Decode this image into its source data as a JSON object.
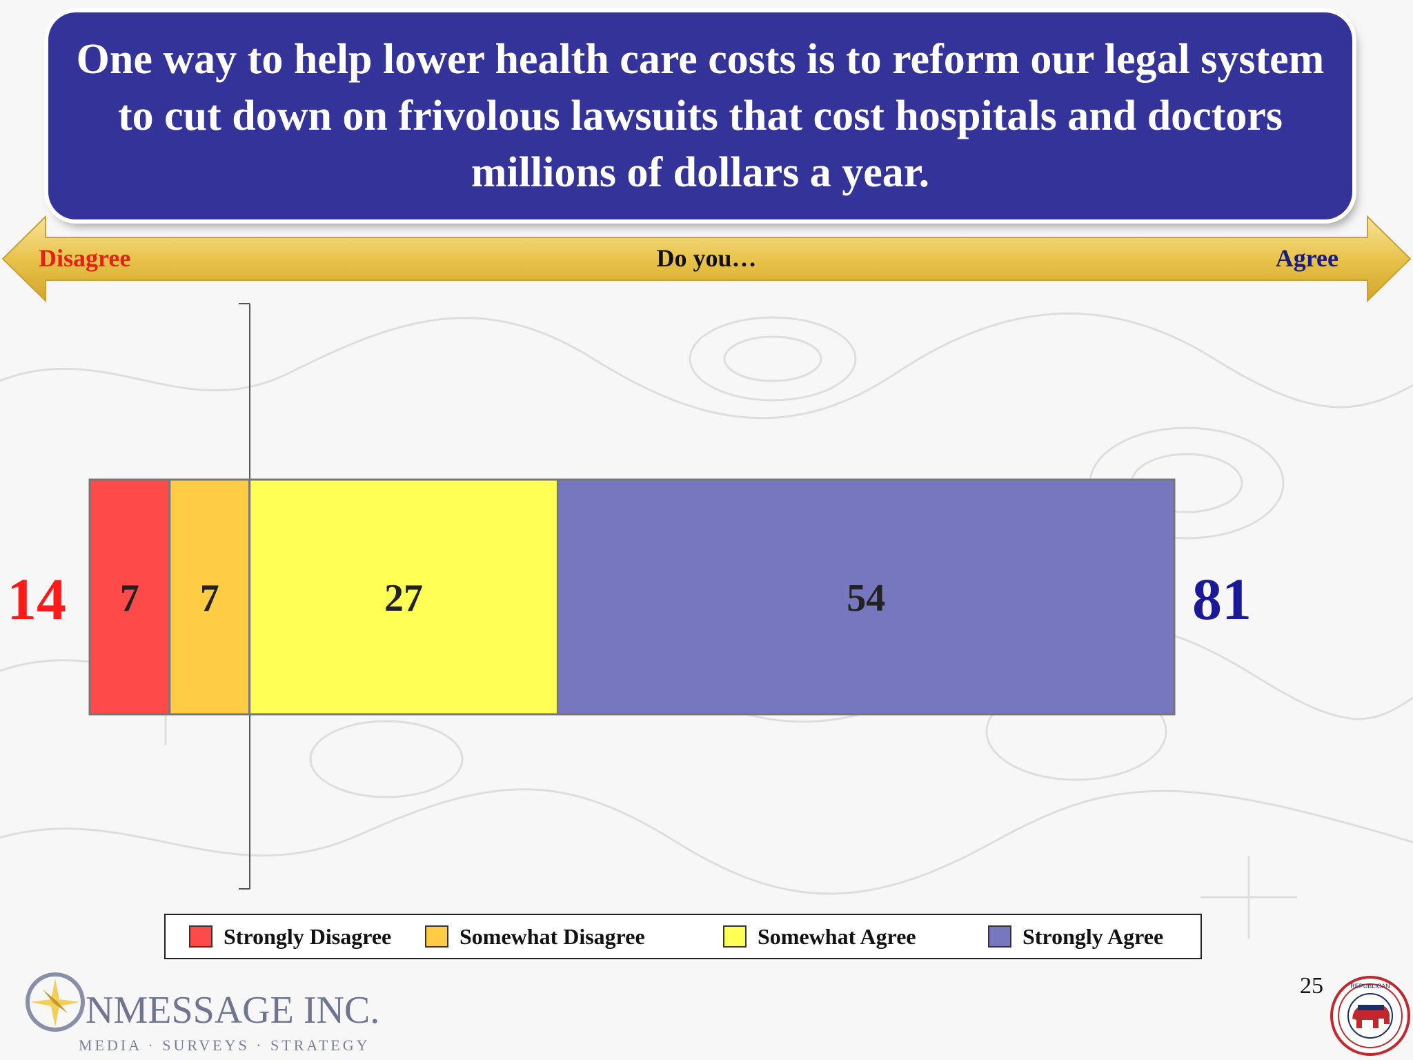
{
  "title": "One way to help lower health care costs is to reform our legal system to cut down on frivolous lawsuits that cost hospitals and doctors millions of dollars a year.",
  "scale": {
    "left_label": "Disagree",
    "center_label": "Do you…",
    "right_label": "Agree"
  },
  "totals": {
    "disagree": "14",
    "agree": "81"
  },
  "chart_data": {
    "type": "bar",
    "orientation": "horizontal",
    "stacked": true,
    "categories": [
      ""
    ],
    "series": [
      {
        "name": "Strongly Disagree",
        "values": [
          7
        ],
        "color": "#ff4a4a"
      },
      {
        "name": "Somewhat Disagree",
        "values": [
          7
        ],
        "color": "#ffcc44"
      },
      {
        "name": "Somewhat Agree",
        "values": [
          27
        ],
        "color": "#ffff55"
      },
      {
        "name": "Strongly Agree",
        "values": [
          54
        ],
        "color": "#7777c0"
      }
    ],
    "data_labels": [
      "7",
      "7",
      "27",
      "54"
    ],
    "legend_position": "bottom",
    "grid": false
  },
  "colors": {
    "title_bg": "#333399",
    "disagree": "#ff1a1a",
    "agree": "#1a1a99",
    "arrow": "#e8c34a"
  },
  "logo": {
    "name": "OnMessage Inc.",
    "tagline": "Media · Surveys · Strategy"
  },
  "page_number": "25",
  "seal": {
    "text": "Republican National Committee"
  }
}
